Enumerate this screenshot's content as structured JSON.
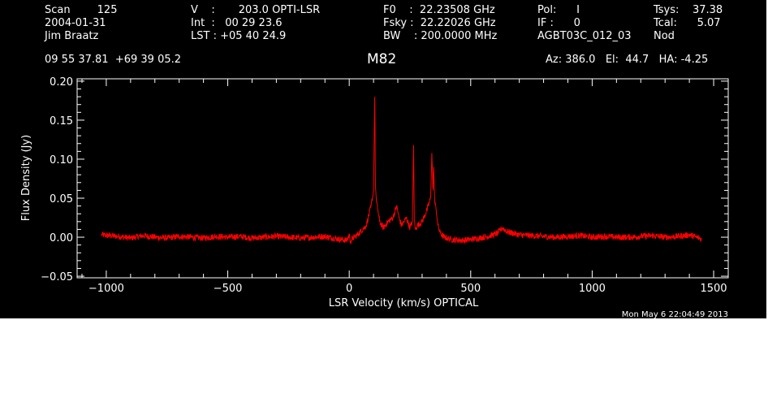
{
  "header": {
    "col1": [
      "Scan        125",
      "2004-01-31",
      "Jim Braatz"
    ],
    "col2": [
      "V    :       203.0 OPTI-LSR",
      "Int  :   00 29 23.6",
      "LST : +05 40 24.9"
    ],
    "col3": [
      "F0    :  22.23508 GHz",
      "Fsky :  22.22026 GHz",
      "BW    : 200.0000 MHz"
    ],
    "col4": [
      "Pol:      I",
      "IF :      0",
      "AGBT03C_012_03"
    ],
    "col5": [
      "Tsys:    37.38",
      "Tcal:      5.07",
      "Nod"
    ],
    "coords": "09 55 37.81  +69 39 05.2",
    "source": "M82",
    "azelha": "Az: 386.0   El:  44.7   HA: -4.25",
    "timestamp": "Mon May  6 22:04:49 2013"
  },
  "colors": {
    "background": "#000000",
    "axes": "#ffffff",
    "trace": "#ff0000"
  },
  "chart_data": {
    "type": "line",
    "title": "M82",
    "xlabel": "LSR Velocity (km/s) OPTICAL",
    "ylabel": "Flux Density (Jy)",
    "xlim": [
      -1120,
      1560
    ],
    "ylim": [
      -0.052,
      0.203
    ],
    "xticks": [
      -1000,
      -500,
      0,
      500,
      1000,
      1500
    ],
    "xtick_labels": [
      "−1000",
      "−500",
      "0",
      "500",
      "1000",
      "1500"
    ],
    "yticks": [
      -0.05,
      0.0,
      0.05,
      0.1,
      0.15,
      0.2
    ],
    "ytick_labels": [
      "−0.05",
      "0.00",
      "0.05",
      "0.10",
      "0.15",
      "0.20"
    ],
    "series": [
      {
        "color": "#ff0000",
        "x": [
          -1020,
          -950,
          -900,
          -850,
          -800,
          -750,
          -700,
          -650,
          -600,
          -550,
          -500,
          -450,
          -400,
          -350,
          -300,
          -250,
          -200,
          -150,
          -100,
          -50,
          -10,
          0,
          5,
          10,
          40,
          70,
          90,
          100,
          105,
          108,
          112,
          118,
          125,
          140,
          160,
          180,
          195,
          205,
          215,
          225,
          235,
          250,
          260,
          265,
          268,
          272,
          280,
          300,
          320,
          335,
          340,
          345,
          348,
          352,
          358,
          365,
          375,
          390,
          420,
          470,
          520,
          570,
          610,
          630,
          650,
          700,
          750,
          800,
          850,
          900,
          950,
          1000,
          1050,
          1100,
          1150,
          1200,
          1250,
          1300,
          1350,
          1400,
          1450
        ],
        "y": [
          0.003,
          0.001,
          -0.001,
          0.002,
          0.0,
          -0.001,
          0.001,
          0.0,
          -0.001,
          0.001,
          0.0,
          0.001,
          -0.001,
          0.0,
          0.001,
          0.0,
          -0.001,
          0.0,
          0.001,
          -0.002,
          -0.004,
          0.003,
          -0.006,
          -0.003,
          0.005,
          0.015,
          0.04,
          0.06,
          0.18,
          0.065,
          0.045,
          0.035,
          0.02,
          0.012,
          0.02,
          0.025,
          0.04,
          0.025,
          0.015,
          0.02,
          0.025,
          0.012,
          0.02,
          0.118,
          0.02,
          0.01,
          0.015,
          0.02,
          0.035,
          0.05,
          0.108,
          0.06,
          0.09,
          0.045,
          0.035,
          0.015,
          0.005,
          0.0,
          -0.003,
          -0.004,
          -0.002,
          0.001,
          0.005,
          0.012,
          0.007,
          0.003,
          0.002,
          0.001,
          0.0,
          0.001,
          0.002,
          0.0,
          0.001,
          0.0,
          0.0,
          0.001,
          0.002,
          0.0,
          0.001,
          0.003,
          -0.002
        ]
      }
    ]
  }
}
